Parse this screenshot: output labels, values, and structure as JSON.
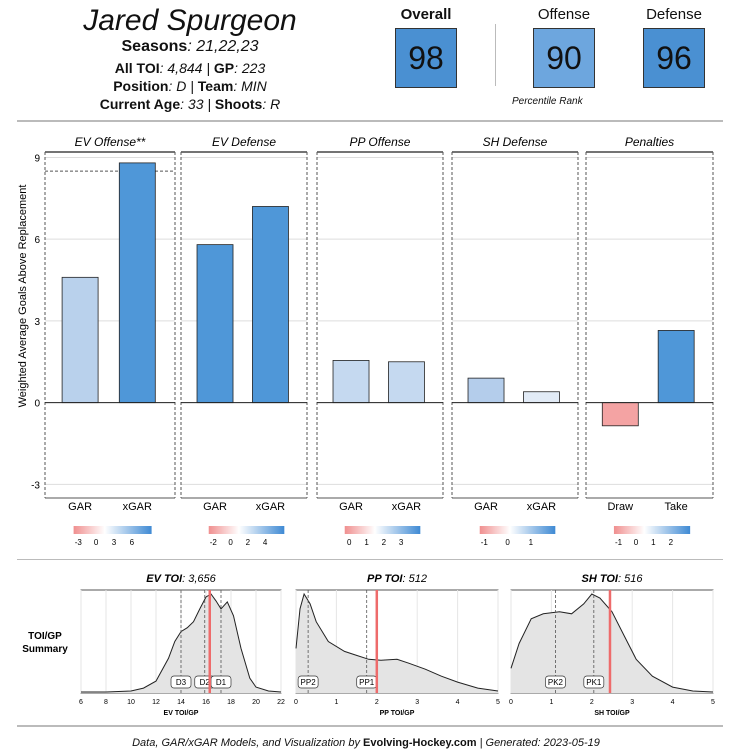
{
  "player": {
    "name": "Jared Spurgeon",
    "seasons_label": "Seasons",
    "seasons": "21,22,23",
    "toi_label": "All TOI",
    "toi": "4,844",
    "gp_label": "GP",
    "gp": "223",
    "position_label": "Position",
    "position": "D",
    "team_label": "Team",
    "team": "MIN",
    "age_label": "Current Age",
    "age": "33",
    "shoots_label": "Shoots",
    "shoots": "R"
  },
  "ranks": {
    "overall_label": "Overall",
    "overall": "98",
    "offense_label": "Offense",
    "offense": "90",
    "defense_label": "Defense",
    "defense": "96",
    "caption": "Percentile  Rank",
    "colors": {
      "overall": "#4a90d2",
      "offense": "#6da6de",
      "defense": "#4a90d2"
    }
  },
  "chart_data": [
    {
      "type": "bar",
      "ylabel": "Weighted Average Goals Above Replacement",
      "ylim": [
        -3.5,
        9.2
      ],
      "yticks": [
        -3,
        0,
        3,
        6,
        9
      ],
      "panels": [
        {
          "title": "EV Offense**",
          "categories": [
            "GAR",
            "xGAR"
          ],
          "values": [
            4.6,
            8.8
          ],
          "colors": [
            "#b9d1ec",
            "#4f97d8"
          ],
          "ref_line": 8.5,
          "legend_ticks": [
            "-3",
            "0",
            "3",
            "6"
          ]
        },
        {
          "title": "EV Defense",
          "categories": [
            "GAR",
            "xGAR"
          ],
          "values": [
            5.8,
            7.2
          ],
          "colors": [
            "#4f97d8",
            "#4f97d8"
          ],
          "legend_ticks": [
            "-2",
            "0",
            "2",
            "4"
          ]
        },
        {
          "title": "PP Offense",
          "categories": [
            "GAR",
            "xGAR"
          ],
          "values": [
            1.55,
            1.5
          ],
          "colors": [
            "#c5d9f0",
            "#c5d9f0"
          ],
          "legend_ticks": [
            "0",
            "1",
            "2",
            "3"
          ]
        },
        {
          "title": "SH Defense",
          "categories": [
            "GAR",
            "xGAR"
          ],
          "values": [
            0.9,
            0.4
          ],
          "colors": [
            "#b4cdeb",
            "#e2ebf6"
          ],
          "legend_ticks": [
            "-1",
            "0",
            "1"
          ]
        },
        {
          "title": "Penalties",
          "categories": [
            "Draw",
            "Take"
          ],
          "values": [
            -0.85,
            2.65
          ],
          "colors": [
            "#f4a3a3",
            "#4f97d8"
          ],
          "legend_ticks": [
            "-1",
            "0",
            "1",
            "2"
          ]
        }
      ]
    },
    {
      "type": "area",
      "row_label": "TOI/GP\nSummary",
      "row_label_1": "TOI/GP",
      "row_label_2": "Summary",
      "panels": [
        {
          "title_label": "EV TOI",
          "title_value": "3,656",
          "xlabel": "EV TOI/GP",
          "xlim": [
            6,
            22
          ],
          "xticks": [
            6,
            8,
            10,
            12,
            14,
            16,
            18,
            20,
            22
          ],
          "player_value": 16.3,
          "tiers": [
            {
              "label": "D3",
              "x": 14.0
            },
            {
              "label": "D2",
              "x": 15.9
            },
            {
              "label": "D1",
              "x": 17.2
            }
          ],
          "density": [
            [
              6,
              0.01
            ],
            [
              8,
              0.01
            ],
            [
              10,
              0.02
            ],
            [
              11,
              0.05
            ],
            [
              12,
              0.12
            ],
            [
              13,
              0.35
            ],
            [
              13.5,
              0.52
            ],
            [
              14,
              0.62
            ],
            [
              14.5,
              0.66
            ],
            [
              15,
              0.72
            ],
            [
              15.5,
              0.85
            ],
            [
              16,
              0.97
            ],
            [
              16.4,
              1.0
            ],
            [
              16.8,
              0.93
            ],
            [
              17.2,
              0.85
            ],
            [
              17.7,
              0.92
            ],
            [
              18.2,
              0.78
            ],
            [
              18.8,
              0.45
            ],
            [
              19.5,
              0.15
            ],
            [
              20,
              0.06
            ],
            [
              21,
              0.02
            ],
            [
              22,
              0.01
            ]
          ]
        },
        {
          "title_label": "PP TOI",
          "title_value": "512",
          "xlabel": "PP TOI/GP",
          "xlim": [
            0,
            5
          ],
          "xticks": [
            0,
            1,
            2,
            3,
            4,
            5
          ],
          "player_value": 2.0,
          "tiers": [
            {
              "label": "PP2",
              "x": 0.3
            },
            {
              "label": "PP1",
              "x": 1.75
            }
          ],
          "density": [
            [
              0,
              0.45
            ],
            [
              0.1,
              0.85
            ],
            [
              0.2,
              1.0
            ],
            [
              0.35,
              0.9
            ],
            [
              0.5,
              0.72
            ],
            [
              0.8,
              0.52
            ],
            [
              1.2,
              0.42
            ],
            [
              1.5,
              0.38
            ],
            [
              1.8,
              0.34
            ],
            [
              2.1,
              0.33
            ],
            [
              2.5,
              0.34
            ],
            [
              2.8,
              0.3
            ],
            [
              3.2,
              0.24
            ],
            [
              3.6,
              0.17
            ],
            [
              4.0,
              0.11
            ],
            [
              4.5,
              0.05
            ],
            [
              5,
              0.02
            ]
          ]
        },
        {
          "title_label": "SH TOI",
          "title_value": "516",
          "xlabel": "SH TOI/GP",
          "xlim": [
            0,
            5
          ],
          "xticks": [
            0,
            1,
            2,
            3,
            4,
            5
          ],
          "player_value": 2.45,
          "tiers": [
            {
              "label": "PK2",
              "x": 1.1
            },
            {
              "label": "PK1",
              "x": 2.05
            }
          ],
          "density": [
            [
              0,
              0.25
            ],
            [
              0.2,
              0.5
            ],
            [
              0.5,
              0.75
            ],
            [
              0.8,
              0.8
            ],
            [
              1.2,
              0.82
            ],
            [
              1.5,
              0.8
            ],
            [
              1.8,
              0.9
            ],
            [
              2.0,
              1.0
            ],
            [
              2.2,
              0.96
            ],
            [
              2.5,
              0.82
            ],
            [
              2.8,
              0.58
            ],
            [
              3.1,
              0.34
            ],
            [
              3.5,
              0.17
            ],
            [
              4.0,
              0.06
            ],
            [
              4.5,
              0.02
            ],
            [
              5,
              0.01
            ]
          ]
        }
      ]
    }
  ],
  "footer": {
    "prefix": "Data, GAR/xGAR Models, and Visualization by",
    "brand": "Evolving-Hockey.com",
    "suffix": "| Generated: 2023-05-19"
  }
}
